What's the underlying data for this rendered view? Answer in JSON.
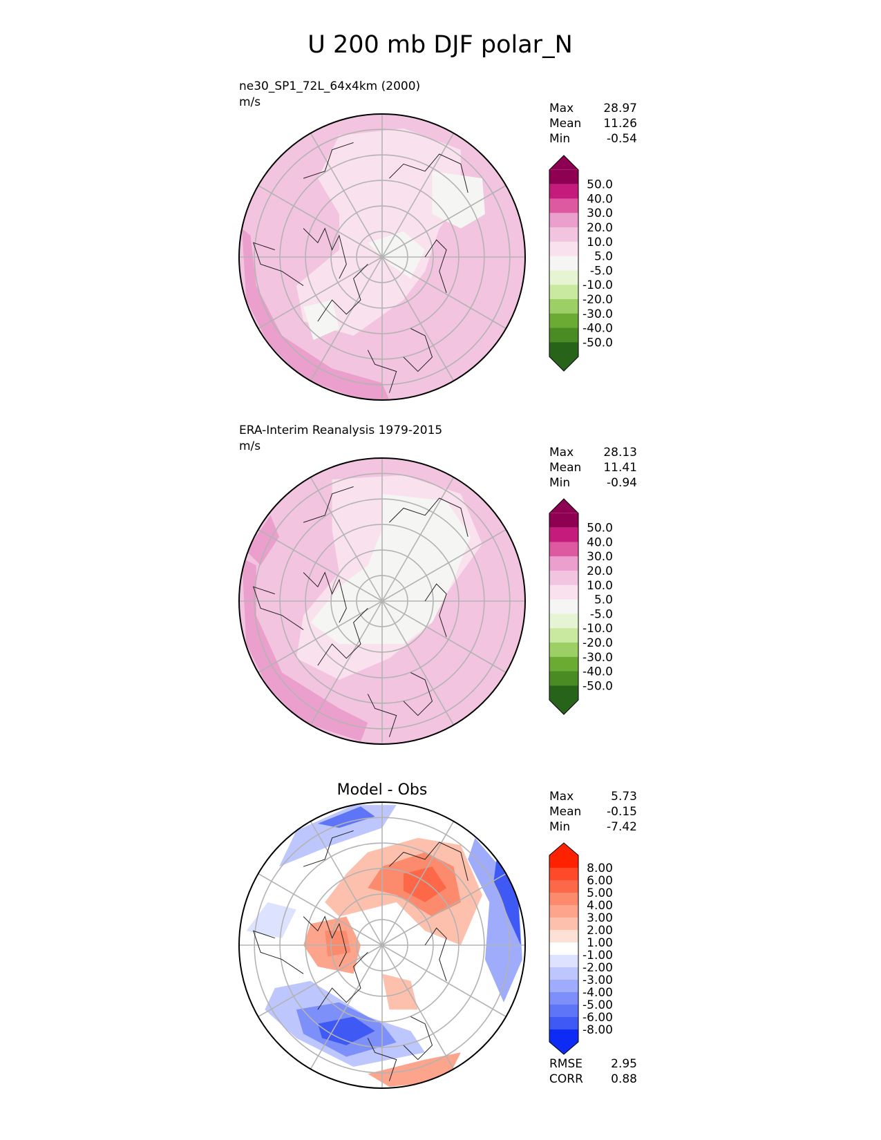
{
  "figure": {
    "title": "U 200 mb DJF polar_N"
  },
  "panels": [
    {
      "id": "test",
      "title": "ne30_SP1_72L_64x4km (2000)",
      "units": "m/s",
      "center_title": "",
      "stats": [
        {
          "label": "Max",
          "value": "28.97"
        },
        {
          "label": "Mean",
          "value": "11.26"
        },
        {
          "label": "Min",
          "value": "-0.54"
        }
      ],
      "footer_stats": [],
      "background_color": "#f2c4df",
      "colorbar": {
        "levels": [
          "50.0",
          "40.0",
          "30.0",
          "20.0",
          "10.0",
          "5.0",
          "-5.0",
          "-10.0",
          "-20.0",
          "-30.0",
          "-40.0",
          "-50.0"
        ],
        "colors": [
          "#8e0152",
          "#c51b7d",
          "#de5aa0",
          "#eb9fcc",
          "#f2c4df",
          "#fae1ee",
          "#f5f5f3",
          "#e7f4d3",
          "#c9e8a0",
          "#9ccf64",
          "#6cab33",
          "#4a8b23",
          "#276419"
        ]
      },
      "regions": [
        {
          "name": "lowlat-band-dark-sw",
          "color": "#eb9fcc",
          "points": [
            [
              -0.98,
              0.2
            ],
            [
              -0.95,
              -0.3
            ],
            [
              -0.8,
              -0.6
            ],
            [
              -0.55,
              -0.85
            ],
            [
              -0.2,
              -0.98
            ],
            [
              0.05,
              -1.0
            ],
            [
              0.0,
              -0.88
            ],
            [
              -0.35,
              -0.78
            ],
            [
              -0.7,
              -0.55
            ],
            [
              -0.88,
              -0.2
            ],
            [
              -0.92,
              0.15
            ]
          ]
        },
        {
          "name": "light-pink-arctic-core",
          "color": "#fae1ee",
          "points": [
            [
              -0.3,
              0.85
            ],
            [
              0.15,
              0.9
            ],
            [
              0.55,
              0.75
            ],
            [
              0.55,
              0.4
            ],
            [
              0.4,
              0.2
            ],
            [
              0.3,
              -0.1
            ],
            [
              0.15,
              -0.3
            ],
            [
              -0.2,
              -0.55
            ],
            [
              -0.55,
              -0.45
            ],
            [
              -0.6,
              -0.2
            ],
            [
              -0.3,
              0.05
            ],
            [
              -0.3,
              0.3
            ],
            [
              -0.45,
              0.55
            ]
          ]
        },
        {
          "name": "white-region-siberia",
          "color": "#f5f5f3",
          "points": [
            [
              0.35,
              0.6
            ],
            [
              0.7,
              0.55
            ],
            [
              0.72,
              0.3
            ],
            [
              0.55,
              0.2
            ],
            [
              0.35,
              0.3
            ]
          ]
        },
        {
          "name": "white-region-pole",
          "color": "#f5f5f3",
          "points": [
            [
              -0.1,
              0.1
            ],
            [
              0.15,
              0.18
            ],
            [
              0.3,
              0.05
            ],
            [
              0.2,
              -0.15
            ],
            [
              0.05,
              -0.05
            ]
          ]
        },
        {
          "name": "white-region-canada",
          "color": "#f5f5f3",
          "points": [
            [
              -0.55,
              -0.35
            ],
            [
              -0.35,
              -0.3
            ],
            [
              -0.3,
              -0.5
            ],
            [
              -0.48,
              -0.58
            ]
          ]
        }
      ]
    },
    {
      "id": "reference",
      "title": "ERA-Interim Reanalysis 1979-2015",
      "units": "m/s",
      "center_title": "",
      "stats": [
        {
          "label": "Max",
          "value": "28.13"
        },
        {
          "label": "Mean",
          "value": "11.41"
        },
        {
          "label": "Min",
          "value": "-0.94"
        }
      ],
      "footer_stats": [],
      "background_color": "#f2c4df",
      "colorbar": {
        "levels": [
          "50.0",
          "40.0",
          "30.0",
          "20.0",
          "10.0",
          "5.0",
          "-5.0",
          "-10.0",
          "-20.0",
          "-30.0",
          "-40.0",
          "-50.0"
        ],
        "colors": [
          "#8e0152",
          "#c51b7d",
          "#de5aa0",
          "#eb9fcc",
          "#f2c4df",
          "#fae1ee",
          "#f5f5f3",
          "#e7f4d3",
          "#c9e8a0",
          "#9ccf64",
          "#6cab33",
          "#4a8b23",
          "#276419"
        ]
      },
      "regions": [
        {
          "name": "lowlat-band-dark-sw",
          "color": "#eb9fcc",
          "points": [
            [
              -0.98,
              0.3
            ],
            [
              -0.95,
              -0.3
            ],
            [
              -0.8,
              -0.6
            ],
            [
              -0.55,
              -0.85
            ],
            [
              -0.15,
              -0.98
            ],
            [
              -0.1,
              -0.85
            ],
            [
              -0.3,
              -0.75
            ],
            [
              -0.7,
              -0.5
            ],
            [
              -0.88,
              -0.1
            ],
            [
              -0.88,
              0.25
            ]
          ]
        },
        {
          "name": "lowlat-band-dark-west",
          "color": "#eb9fcc",
          "points": [
            [
              -0.95,
              0.35
            ],
            [
              -0.78,
              0.6
            ],
            [
              -0.72,
              0.45
            ],
            [
              -0.85,
              0.25
            ]
          ]
        },
        {
          "name": "light-pink-arctic-core",
          "color": "#fae1ee",
          "points": [
            [
              -0.35,
              0.85
            ],
            [
              0.15,
              0.88
            ],
            [
              0.55,
              0.75
            ],
            [
              0.7,
              0.4
            ],
            [
              0.45,
              0.05
            ],
            [
              0.3,
              -0.2
            ],
            [
              0.05,
              -0.4
            ],
            [
              -0.3,
              -0.55
            ],
            [
              -0.6,
              -0.4
            ],
            [
              -0.55,
              -0.1
            ],
            [
              -0.3,
              0.2
            ],
            [
              -0.35,
              0.5
            ]
          ]
        },
        {
          "name": "white-region-main",
          "color": "#f5f5f3",
          "points": [
            [
              0.0,
              0.75
            ],
            [
              0.45,
              0.7
            ],
            [
              0.62,
              0.45
            ],
            [
              0.5,
              0.15
            ],
            [
              0.35,
              -0.15
            ],
            [
              0.15,
              -0.3
            ],
            [
              -0.3,
              -0.3
            ],
            [
              -0.5,
              -0.15
            ],
            [
              -0.3,
              0.1
            ],
            [
              -0.1,
              0.25
            ],
            [
              0.0,
              0.5
            ]
          ]
        }
      ]
    },
    {
      "id": "diff",
      "title": "",
      "units": "",
      "center_title": "Model - Obs",
      "stats": [
        {
          "label": "Max",
          "value": "5.73"
        },
        {
          "label": "Mean",
          "value": "-0.15"
        },
        {
          "label": "Min",
          "value": "-7.42"
        }
      ],
      "footer_stats": [
        {
          "label": "RMSE",
          "value": "2.95"
        },
        {
          "label": "CORR",
          "value": "0.88"
        }
      ],
      "background_color": "#ffffff",
      "colorbar": {
        "levels": [
          "8.00",
          "6.00",
          "5.00",
          "4.00",
          "3.00",
          "2.00",
          "1.00",
          "-1.00",
          "-2.00",
          "-3.00",
          "-4.00",
          "-5.00",
          "-6.00",
          "-8.00"
        ],
        "colors": [
          "#ff2200",
          "#ff4a2a",
          "#fd6849",
          "#fc8a6c",
          "#fca48c",
          "#fdc0ad",
          "#fde0d6",
          "#ffffff",
          "#dde2ff",
          "#bdc7fd",
          "#9eacfb",
          "#7d90f9",
          "#5e75f7",
          "#3f59f5",
          "#0d2bf5"
        ]
      },
      "regions": [
        {
          "name": "blue-southwest-1",
          "color": "#bdc7fd",
          "points": [
            [
              -0.75,
              -0.3
            ],
            [
              -0.5,
              -0.25
            ],
            [
              -0.1,
              -0.5
            ],
            [
              0.2,
              -0.6
            ],
            [
              0.3,
              -0.75
            ],
            [
              -0.2,
              -0.85
            ],
            [
              -0.6,
              -0.65
            ],
            [
              -0.82,
              -0.45
            ]
          ]
        },
        {
          "name": "blue-southwest-2",
          "color": "#7d90f9",
          "points": [
            [
              -0.6,
              -0.45
            ],
            [
              -0.3,
              -0.4
            ],
            [
              0.0,
              -0.55
            ],
            [
              0.1,
              -0.68
            ],
            [
              -0.25,
              -0.78
            ],
            [
              -0.55,
              -0.62
            ]
          ]
        },
        {
          "name": "blue-southwest-3",
          "color": "#3f59f5",
          "points": [
            [
              -0.45,
              -0.55
            ],
            [
              -0.2,
              -0.5
            ],
            [
              -0.05,
              -0.6
            ],
            [
              -0.25,
              -0.7
            ],
            [
              -0.42,
              -0.65
            ]
          ]
        },
        {
          "name": "blue-northwest",
          "color": "#bdc7fd",
          "points": [
            [
              -0.6,
              0.8
            ],
            [
              -0.2,
              0.98
            ],
            [
              0.1,
              0.98
            ],
            [
              0.0,
              0.82
            ],
            [
              -0.35,
              0.7
            ],
            [
              -0.72,
              0.55
            ]
          ]
        },
        {
          "name": "blue-northwest-deep",
          "color": "#5e75f7",
          "points": [
            [
              -0.45,
              0.85
            ],
            [
              -0.15,
              0.97
            ],
            [
              -0.05,
              0.9
            ],
            [
              -0.3,
              0.82
            ]
          ]
        },
        {
          "name": "blue-east",
          "color": "#9eacfb",
          "points": [
            [
              0.65,
              0.75
            ],
            [
              0.95,
              0.4
            ],
            [
              0.98,
              -0.1
            ],
            [
              0.85,
              -0.4
            ],
            [
              0.72,
              -0.1
            ],
            [
              0.75,
              0.3
            ],
            [
              0.6,
              0.6
            ]
          ]
        },
        {
          "name": "blue-east-deep",
          "color": "#3f59f5",
          "points": [
            [
              0.8,
              0.6
            ],
            [
              0.95,
              0.35
            ],
            [
              0.97,
              0.0
            ],
            [
              0.88,
              0.2
            ],
            [
              0.78,
              0.45
            ]
          ]
        },
        {
          "name": "blue-west-lobe",
          "color": "#dde2ff",
          "points": [
            [
              -0.95,
              0.1
            ],
            [
              -0.8,
              0.3
            ],
            [
              -0.6,
              0.25
            ],
            [
              -0.7,
              0.05
            ]
          ]
        },
        {
          "name": "red-siberia-1",
          "color": "#fdc0ad",
          "points": [
            [
              -0.1,
              0.65
            ],
            [
              0.25,
              0.75
            ],
            [
              0.55,
              0.7
            ],
            [
              0.7,
              0.35
            ],
            [
              0.55,
              0.0
            ],
            [
              0.3,
              0.1
            ],
            [
              0.1,
              0.3
            ],
            [
              -0.3,
              0.2
            ],
            [
              -0.4,
              0.3
            ],
            [
              -0.25,
              0.5
            ]
          ]
        },
        {
          "name": "red-siberia-2",
          "color": "#fc8a6c",
          "points": [
            [
              0.0,
              0.55
            ],
            [
              0.3,
              0.65
            ],
            [
              0.5,
              0.55
            ],
            [
              0.55,
              0.3
            ],
            [
              0.35,
              0.2
            ],
            [
              0.1,
              0.35
            ],
            [
              -0.1,
              0.4
            ]
          ]
        },
        {
          "name": "red-siberia-3",
          "color": "#fd6849",
          "points": [
            [
              0.15,
              0.5
            ],
            [
              0.35,
              0.55
            ],
            [
              0.45,
              0.4
            ],
            [
              0.3,
              0.3
            ],
            [
              0.15,
              0.38
            ]
          ]
        },
        {
          "name": "red-canada",
          "color": "#fca48c",
          "points": [
            [
              -0.5,
              0.15
            ],
            [
              -0.25,
              0.2
            ],
            [
              -0.15,
              0.0
            ],
            [
              -0.2,
              -0.2
            ],
            [
              -0.45,
              -0.15
            ],
            [
              -0.55,
              0.0
            ]
          ]
        },
        {
          "name": "red-canada-core",
          "color": "#fc8a6c",
          "points": [
            [
              -0.4,
              0.1
            ],
            [
              -0.25,
              0.1
            ],
            [
              -0.22,
              -0.05
            ],
            [
              -0.38,
              -0.08
            ]
          ]
        },
        {
          "name": "red-atlantic",
          "color": "#fdc0ad",
          "points": [
            [
              0.0,
              -0.2
            ],
            [
              0.2,
              -0.25
            ],
            [
              0.25,
              -0.45
            ],
            [
              0.05,
              -0.45
            ]
          ]
        },
        {
          "name": "red-south",
          "color": "#fca48c",
          "points": [
            [
              -0.1,
              -0.9
            ],
            [
              0.3,
              -0.8
            ],
            [
              0.55,
              -0.75
            ],
            [
              0.45,
              -0.95
            ],
            [
              0.05,
              -0.99
            ]
          ]
        },
        {
          "name": "white-pole",
          "color": "#ffffff",
          "points": [
            [
              -0.05,
              0.1
            ],
            [
              0.08,
              0.12
            ],
            [
              0.1,
              -0.02
            ],
            [
              0.0,
              -0.08
            ],
            [
              -0.08,
              0.0
            ]
          ]
        }
      ]
    }
  ]
}
